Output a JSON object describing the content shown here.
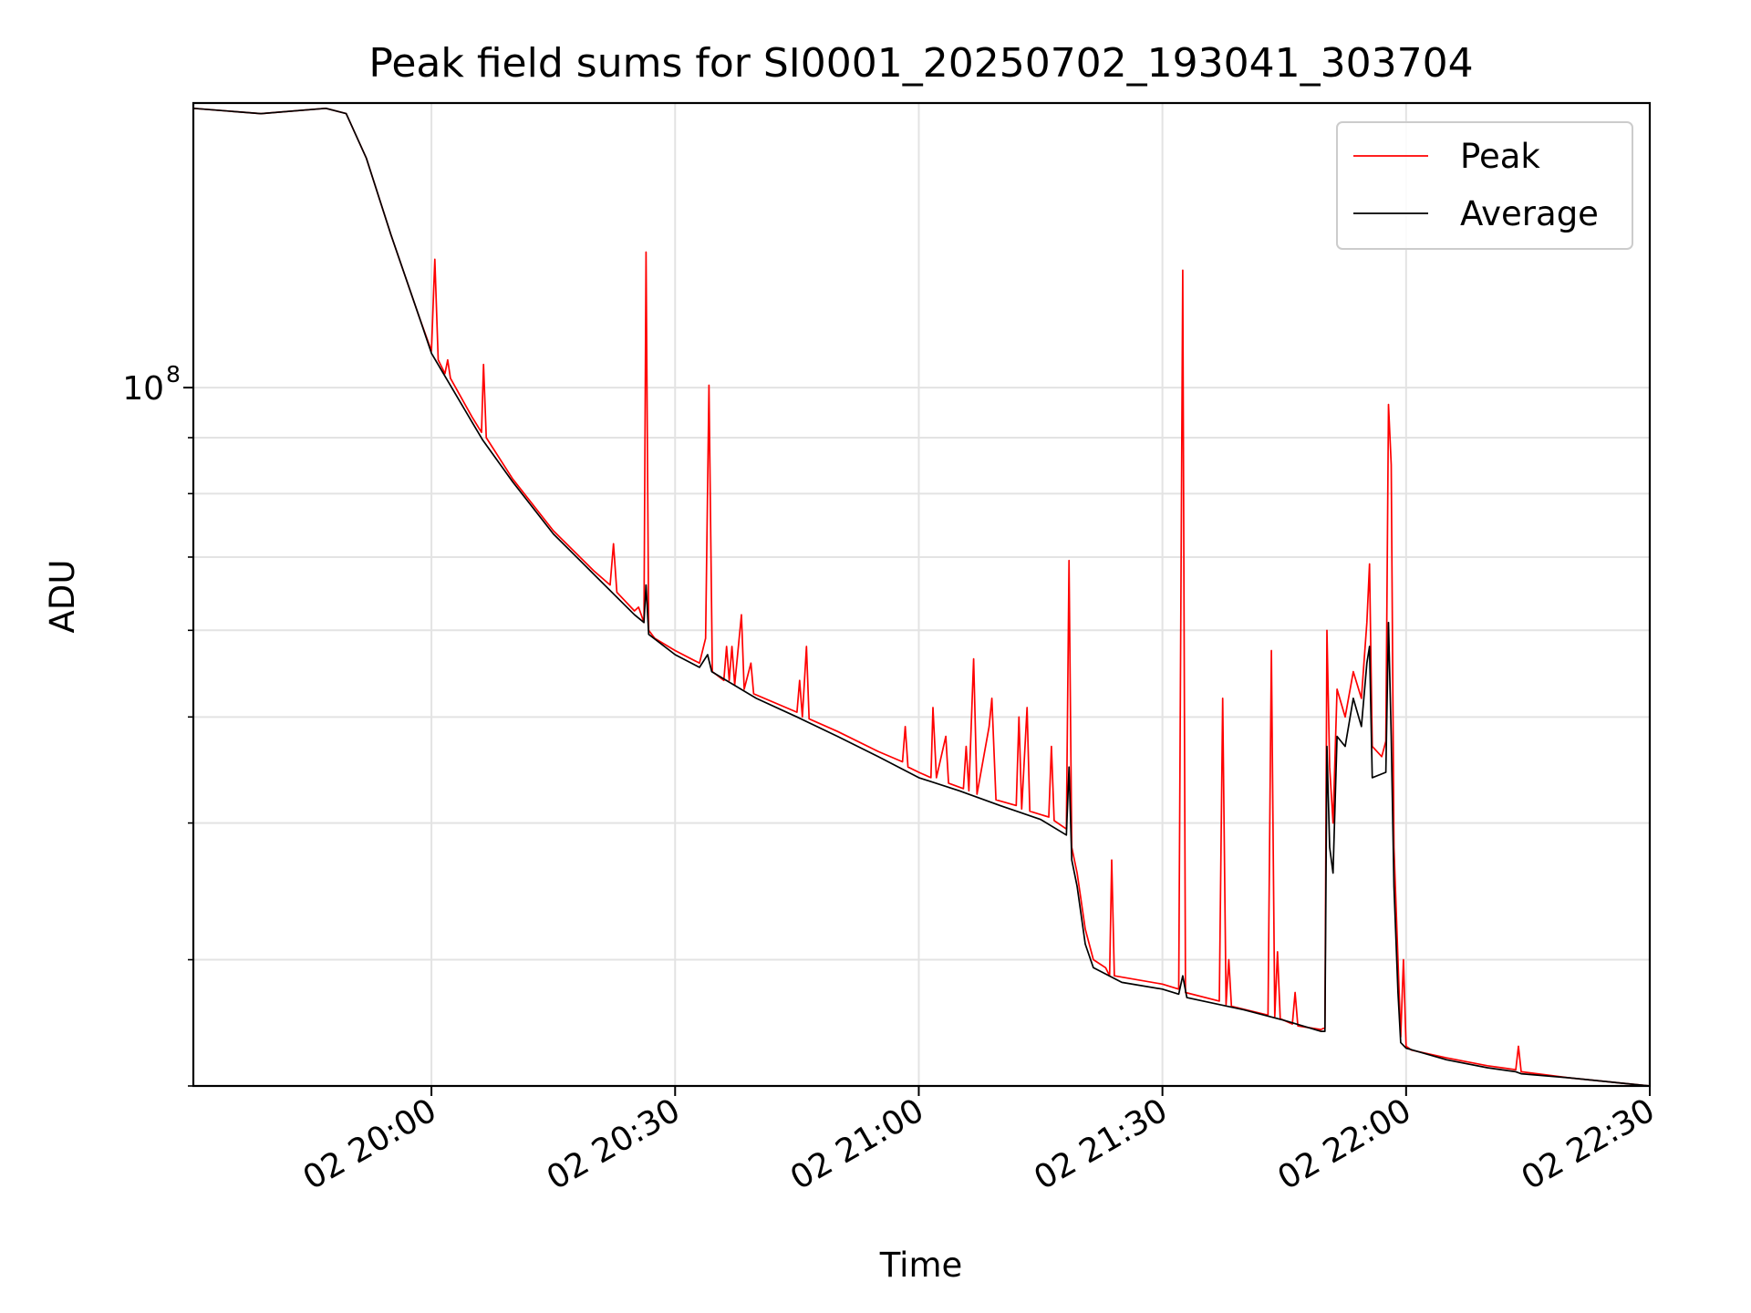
{
  "chart_data": {
    "type": "line",
    "title": "Peak field sums for SI0001_20250702_193041_303704",
    "xlabel": "Time",
    "ylabel": "ADU",
    "xscale": "time",
    "yscale": "log",
    "xlim": [
      "2025-07-02 19:30:41",
      "2025-07-02 22:30:00"
    ],
    "ylim": [
      23000000,
      182000000
    ],
    "grid": true,
    "legend_position": "top-right",
    "x_ticks": [
      "02 20:00",
      "02 20:30",
      "02 21:00",
      "02 21:30",
      "02 22:00",
      "02 22:30"
    ],
    "y_ticks": [
      {
        "label": "10",
        "exponent": "8",
        "value": 100000000
      }
    ],
    "y_minor_ticks": [
      30000000,
      40000000,
      50000000,
      60000000,
      70000000,
      80000000,
      90000000,
      200000000
    ],
    "series": [
      {
        "name": "Peak",
        "color": "#ff0000",
        "points": [
          [
            "2025-07-02 19:30:41",
            180000000
          ],
          [
            "2025-07-02 19:39:00",
            178000000
          ],
          [
            "2025-07-02 19:47:00",
            180000000
          ],
          [
            "2025-07-02 19:49:30",
            178000000
          ],
          [
            "2025-07-02 19:52:00",
            162000000
          ],
          [
            "2025-07-02 19:55:00",
            138000000
          ],
          [
            "2025-07-02 19:58:30",
            116000000
          ],
          [
            "2025-07-02 20:00:00",
            108000000
          ],
          [
            "2025-07-02 20:00:25",
            131000000
          ],
          [
            "2025-07-02 20:00:50",
            106000000
          ],
          [
            "2025-07-02 20:01:40",
            103000000
          ],
          [
            "2025-07-02 20:02:00",
            106000000
          ],
          [
            "2025-07-02 20:02:20",
            102000000
          ],
          [
            "2025-07-02 20:05:00",
            94000000
          ],
          [
            "2025-07-02 20:06:10",
            91000000
          ],
          [
            "2025-07-02 20:06:25",
            105000000
          ],
          [
            "2025-07-02 20:06:45",
            90000000
          ],
          [
            "2025-07-02 20:10:00",
            82500000
          ],
          [
            "2025-07-02 20:15:00",
            74000000
          ],
          [
            "2025-07-02 20:20:00",
            68000000
          ],
          [
            "2025-07-02 20:22:00",
            66000000
          ],
          [
            "2025-07-02 20:22:25",
            72000000
          ],
          [
            "2025-07-02 20:22:50",
            65000000
          ],
          [
            "2025-07-02 20:25:00",
            62500000
          ],
          [
            "2025-07-02 20:25:30",
            63000000
          ],
          [
            "2025-07-02 20:26:10",
            61000000
          ],
          [
            "2025-07-02 20:26:25",
            133000000
          ],
          [
            "2025-07-02 20:26:45",
            60000000
          ],
          [
            "2025-07-02 20:27:30",
            59000000
          ],
          [
            "2025-07-02 20:30:00",
            57500000
          ],
          [
            "2025-07-02 20:33:00",
            56000000
          ],
          [
            "2025-07-02 20:33:45",
            59000000
          ],
          [
            "2025-07-02 20:34:10",
            100500000
          ],
          [
            "2025-07-02 20:34:35",
            55000000
          ],
          [
            "2025-07-02 20:36:00",
            54000000
          ],
          [
            "2025-07-02 20:36:20",
            58000000
          ],
          [
            "2025-07-02 20:36:40",
            54000000
          ],
          [
            "2025-07-02 20:37:00",
            58000000
          ],
          [
            "2025-07-02 20:37:20",
            53500000
          ],
          [
            "2025-07-02 20:38:10",
            62000000
          ],
          [
            "2025-07-02 20:38:30",
            53000000
          ],
          [
            "2025-07-02 20:39:20",
            56000000
          ],
          [
            "2025-07-02 20:39:40",
            52500000
          ],
          [
            "2025-07-02 20:45:00",
            50500000
          ],
          [
            "2025-07-02 20:45:20",
            54000000
          ],
          [
            "2025-07-02 20:45:40",
            50000000
          ],
          [
            "2025-07-02 20:46:10",
            58000000
          ],
          [
            "2025-07-02 20:46:30",
            49800000
          ],
          [
            "2025-07-02 20:50:00",
            48500000
          ],
          [
            "2025-07-02 20:55:00",
            46500000
          ],
          [
            "2025-07-02 20:58:00",
            45500000
          ],
          [
            "2025-07-02 20:58:20",
            49000000
          ],
          [
            "2025-07-02 20:58:40",
            45000000
          ],
          [
            "2025-07-02 21:00:00",
            44500000
          ],
          [
            "2025-07-02 21:01:30",
            44000000
          ],
          [
            "2025-07-02 21:01:45",
            51000000
          ],
          [
            "2025-07-02 21:02:10",
            44000000
          ],
          [
            "2025-07-02 21:03:20",
            48000000
          ],
          [
            "2025-07-02 21:03:40",
            43500000
          ],
          [
            "2025-07-02 21:05:30",
            43000000
          ],
          [
            "2025-07-02 21:05:50",
            47000000
          ],
          [
            "2025-07-02 21:06:10",
            42800000
          ],
          [
            "2025-07-02 21:06:45",
            56500000
          ],
          [
            "2025-07-02 21:07:10",
            42500000
          ],
          [
            "2025-07-02 21:08:40",
            49000000
          ],
          [
            "2025-07-02 21:09:00",
            52000000
          ],
          [
            "2025-07-02 21:09:30",
            42000000
          ],
          [
            "2025-07-02 21:12:00",
            41500000
          ],
          [
            "2025-07-02 21:12:20",
            50000000
          ],
          [
            "2025-07-02 21:12:40",
            41200000
          ],
          [
            "2025-07-02 21:13:20",
            51000000
          ],
          [
            "2025-07-02 21:13:40",
            41000000
          ],
          [
            "2025-07-02 21:16:00",
            40500000
          ],
          [
            "2025-07-02 21:16:20",
            47000000
          ],
          [
            "2025-07-02 21:16:40",
            40200000
          ],
          [
            "2025-07-02 21:18:10",
            39500000
          ],
          [
            "2025-07-02 21:18:30",
            69500000
          ],
          [
            "2025-07-02 21:18:50",
            38000000
          ],
          [
            "2025-07-02 21:19:30",
            36000000
          ],
          [
            "2025-07-02 21:20:30",
            32000000
          ],
          [
            "2025-07-02 21:21:30",
            30000000
          ],
          [
            "2025-07-02 21:23:00",
            29500000
          ],
          [
            "2025-07-02 21:23:30",
            29000000
          ],
          [
            "2025-07-02 21:23:45",
            37000000
          ],
          [
            "2025-07-02 21:24:05",
            29000000
          ],
          [
            "2025-07-02 21:30:00",
            28500000
          ],
          [
            "2025-07-02 21:32:00",
            28200000
          ],
          [
            "2025-07-02 21:32:30",
            128000000
          ],
          [
            "2025-07-02 21:32:50",
            28000000
          ],
          [
            "2025-07-02 21:37:00",
            27500000
          ],
          [
            "2025-07-02 21:37:25",
            52000000
          ],
          [
            "2025-07-02 21:37:50",
            27300000
          ],
          [
            "2025-07-02 21:38:10",
            30000000
          ],
          [
            "2025-07-02 21:38:30",
            27200000
          ],
          [
            "2025-07-02 21:43:00",
            26700000
          ],
          [
            "2025-07-02 21:43:25",
            57500000
          ],
          [
            "2025-07-02 21:43:50",
            26600000
          ],
          [
            "2025-07-02 21:44:10",
            30500000
          ],
          [
            "2025-07-02 21:44:30",
            26500000
          ],
          [
            "2025-07-02 21:46:00",
            26200000
          ],
          [
            "2025-07-02 21:46:20",
            28000000
          ],
          [
            "2025-07-02 21:46:40",
            26100000
          ],
          [
            "2025-07-02 21:49:30",
            25900000
          ],
          [
            "2025-07-02 21:50:00",
            26000000
          ],
          [
            "2025-07-02 21:50:15",
            60000000
          ],
          [
            "2025-07-02 21:50:35",
            45000000
          ],
          [
            "2025-07-02 21:51:00",
            40000000
          ],
          [
            "2025-07-02 21:51:30",
            53000000
          ],
          [
            "2025-07-02 21:52:30",
            50000000
          ],
          [
            "2025-07-02 21:53:30",
            55000000
          ],
          [
            "2025-07-02 21:54:30",
            52000000
          ],
          [
            "2025-07-02 21:55:10",
            61000000
          ],
          [
            "2025-07-02 21:55:30",
            69000000
          ],
          [
            "2025-07-02 21:55:50",
            47000000
          ],
          [
            "2025-07-02 21:57:00",
            46000000
          ],
          [
            "2025-07-02 21:57:30",
            47500000
          ],
          [
            "2025-07-02 21:57:50",
            96500000
          ],
          [
            "2025-07-02 21:58:10",
            85000000
          ],
          [
            "2025-07-02 21:58:30",
            38000000
          ],
          [
            "2025-07-02 21:59:00",
            30000000
          ],
          [
            "2025-07-02 21:59:20",
            25500000
          ],
          [
            "2025-07-02 21:59:40",
            30000000
          ],
          [
            "2025-07-02 22:00:00",
            25000000
          ],
          [
            "2025-07-02 22:00:40",
            24800000
          ],
          [
            "2025-07-02 22:05:00",
            24400000
          ],
          [
            "2025-07-02 22:10:00",
            24000000
          ],
          [
            "2025-07-02 22:13:30",
            23800000
          ],
          [
            "2025-07-02 22:13:50",
            25000000
          ],
          [
            "2025-07-02 22:14:10",
            23700000
          ],
          [
            "2025-07-02 22:20:00",
            23400000
          ],
          [
            "2025-07-02 22:25:00",
            23200000
          ],
          [
            "2025-07-02 22:30:00",
            23000000
          ]
        ]
      },
      {
        "name": "Average",
        "color": "#000000",
        "points": [
          [
            "2025-07-02 19:30:41",
            180000000
          ],
          [
            "2025-07-02 19:39:00",
            178000000
          ],
          [
            "2025-07-02 19:47:00",
            180000000
          ],
          [
            "2025-07-02 19:49:30",
            178000000
          ],
          [
            "2025-07-02 19:52:00",
            162000000
          ],
          [
            "2025-07-02 19:55:00",
            138000000
          ],
          [
            "2025-07-02 19:58:30",
            116000000
          ],
          [
            "2025-07-02 20:00:00",
            107500000
          ],
          [
            "2025-07-02 20:05:00",
            93000000
          ],
          [
            "2025-07-02 20:06:20",
            89500000
          ],
          [
            "2025-07-02 20:10:00",
            82000000
          ],
          [
            "2025-07-02 20:15:00",
            73500000
          ],
          [
            "2025-07-02 20:20:00",
            67500000
          ],
          [
            "2025-07-02 20:25:00",
            62000000
          ],
          [
            "2025-07-02 20:26:10",
            61000000
          ],
          [
            "2025-07-02 20:26:25",
            66000000
          ],
          [
            "2025-07-02 20:26:45",
            59500000
          ],
          [
            "2025-07-02 20:30:00",
            57000000
          ],
          [
            "2025-07-02 20:33:00",
            55500000
          ],
          [
            "2025-07-02 20:34:00",
            57000000
          ],
          [
            "2025-07-02 20:34:30",
            55000000
          ],
          [
            "2025-07-02 20:40:00",
            52000000
          ],
          [
            "2025-07-02 20:45:00",
            50000000
          ],
          [
            "2025-07-02 20:50:00",
            48000000
          ],
          [
            "2025-07-02 20:55:00",
            46000000
          ],
          [
            "2025-07-02 21:00:00",
            44000000
          ],
          [
            "2025-07-02 21:05:00",
            42800000
          ],
          [
            "2025-07-02 21:10:00",
            41500000
          ],
          [
            "2025-07-02 21:15:00",
            40300000
          ],
          [
            "2025-07-02 21:18:10",
            39000000
          ],
          [
            "2025-07-02 21:18:30",
            45000000
          ],
          [
            "2025-07-02 21:18:50",
            37000000
          ],
          [
            "2025-07-02 21:19:30",
            35000000
          ],
          [
            "2025-07-02 21:20:30",
            31000000
          ],
          [
            "2025-07-02 21:21:30",
            29500000
          ],
          [
            "2025-07-02 21:25:00",
            28600000
          ],
          [
            "2025-07-02 21:30:00",
            28200000
          ],
          [
            "2025-07-02 21:32:00",
            27900000
          ],
          [
            "2025-07-02 21:32:30",
            29000000
          ],
          [
            "2025-07-02 21:33:00",
            27700000
          ],
          [
            "2025-07-02 21:40:00",
            27000000
          ],
          [
            "2025-07-02 21:45:00",
            26400000
          ],
          [
            "2025-07-02 21:49:30",
            25800000
          ],
          [
            "2025-07-02 21:50:00",
            25800000
          ],
          [
            "2025-07-02 21:50:15",
            47000000
          ],
          [
            "2025-07-02 21:50:35",
            38000000
          ],
          [
            "2025-07-02 21:51:00",
            36000000
          ],
          [
            "2025-07-02 21:51:30",
            48000000
          ],
          [
            "2025-07-02 21:52:30",
            47000000
          ],
          [
            "2025-07-02 21:53:30",
            52000000
          ],
          [
            "2025-07-02 21:54:30",
            49000000
          ],
          [
            "2025-07-02 21:55:10",
            56000000
          ],
          [
            "2025-07-02 21:55:30",
            58000000
          ],
          [
            "2025-07-02 21:55:50",
            44000000
          ],
          [
            "2025-07-02 21:57:30",
            44500000
          ],
          [
            "2025-07-02 21:57:50",
            61000000
          ],
          [
            "2025-07-02 21:58:10",
            48000000
          ],
          [
            "2025-07-02 21:58:30",
            35000000
          ],
          [
            "2025-07-02 21:59:00",
            28000000
          ],
          [
            "2025-07-02 21:59:20",
            25200000
          ],
          [
            "2025-07-02 22:00:00",
            24900000
          ],
          [
            "2025-07-02 22:05:00",
            24300000
          ],
          [
            "2025-07-02 22:10:00",
            23900000
          ],
          [
            "2025-07-02 22:13:30",
            23700000
          ],
          [
            "2025-07-02 22:14:10",
            23600000
          ],
          [
            "2025-07-02 22:20:00",
            23400000
          ],
          [
            "2025-07-02 22:25:00",
            23200000
          ],
          [
            "2025-07-02 22:30:00",
            23000000
          ]
        ]
      }
    ]
  }
}
